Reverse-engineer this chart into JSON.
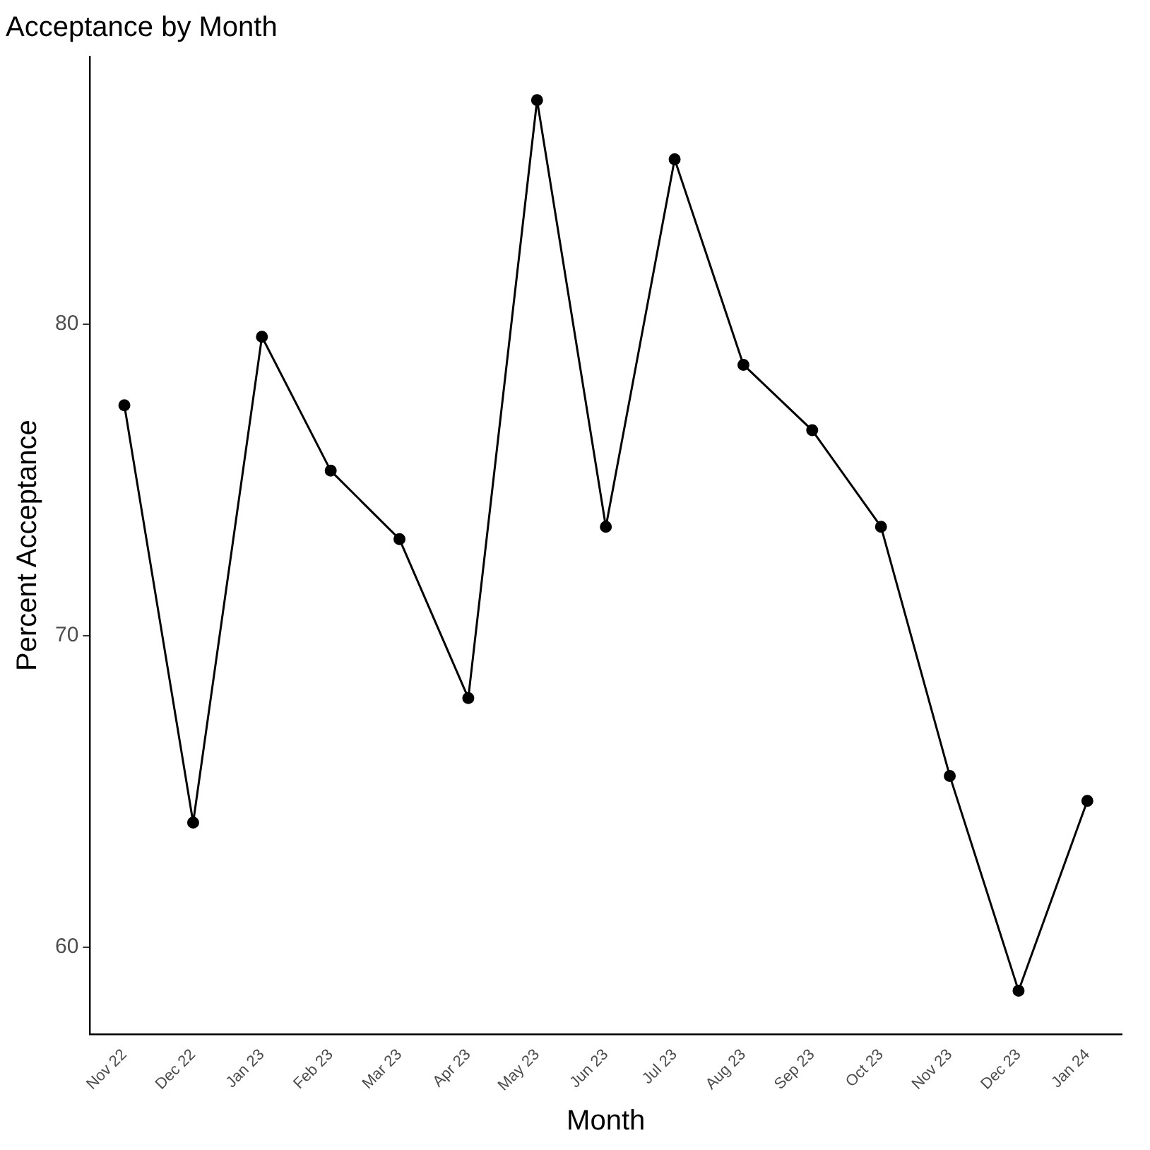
{
  "chart_data": {
    "type": "line",
    "title": "Acceptance by Month",
    "xlabel": "Month",
    "ylabel": "Percent Acceptance",
    "categories": [
      "Nov 22",
      "Dec 22",
      "Jan 23",
      "Feb 23",
      "Mar 23",
      "Apr 23",
      "May 23",
      "Jun 23",
      "Jul 23",
      "Aug 23",
      "Sep 23",
      "Oct 23",
      "Nov 23",
      "Dec 23",
      "Jan 24"
    ],
    "series": [
      {
        "color": "#000000",
        "values": [
          77.4,
          64.0,
          79.6,
          75.3,
          73.1,
          68.0,
          87.2,
          73.5,
          85.3,
          78.7,
          76.6,
          73.5,
          65.5,
          58.6,
          64.7
        ]
      }
    ],
    "ylim": [
      57.2,
      88.6
    ],
    "yticks": [
      60,
      70,
      80
    ],
    "grid": false,
    "legend": false,
    "marker": "circle",
    "line_style": "solid"
  }
}
